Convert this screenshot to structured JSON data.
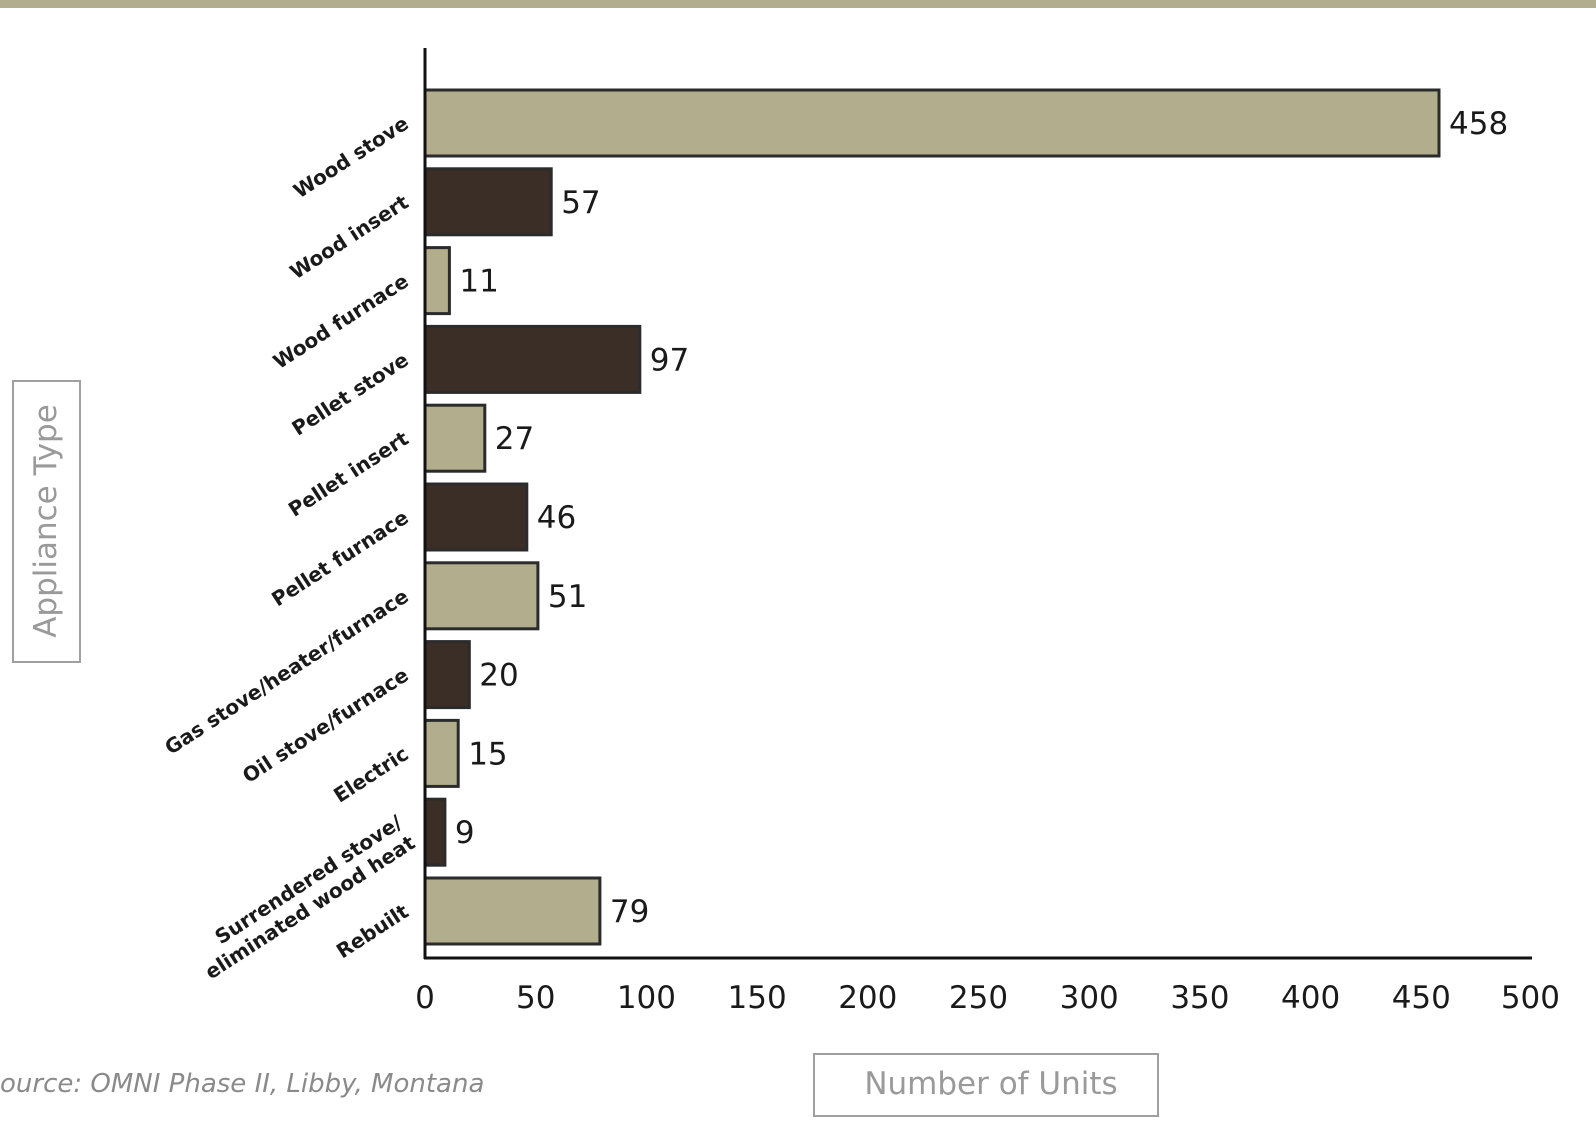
{
  "colors": {
    "top_rule": "#b2ad8d",
    "light_bar": "#b2ad8d",
    "dark_bar": "#3b2e26",
    "bar_stroke": "#2b2b2b",
    "axis": "#111111",
    "title_box": "#a0a0a0"
  },
  "source": "ource: OMNI Phase II, Libby, Montana",
  "chart_data": {
    "type": "bar",
    "orientation": "horizontal",
    "categories": [
      "Wood stove",
      "Wood insert",
      "Wood furnace",
      "Pellet stove",
      "Pellet insert",
      "Pellet furnace",
      "Gas stove/heater/furnace",
      "Oil stove/furnace",
      "Electric",
      "Surrendered stove/ eliminated wood heat",
      "Rebuilt"
    ],
    "values": [
      458,
      57,
      11,
      97,
      27,
      46,
      51,
      20,
      15,
      9,
      79
    ],
    "bar_shades": [
      "light",
      "dark",
      "light",
      "dark",
      "light",
      "dark",
      "light",
      "dark",
      "light",
      "dark",
      "light"
    ],
    "xlabel": "Number of Units",
    "ylabel": "Appliance Type",
    "xlim": [
      0,
      500
    ],
    "xticks": [
      0,
      50,
      100,
      150,
      200,
      250,
      300,
      350,
      400,
      450,
      500
    ],
    "grid": false,
    "legend": "none"
  }
}
